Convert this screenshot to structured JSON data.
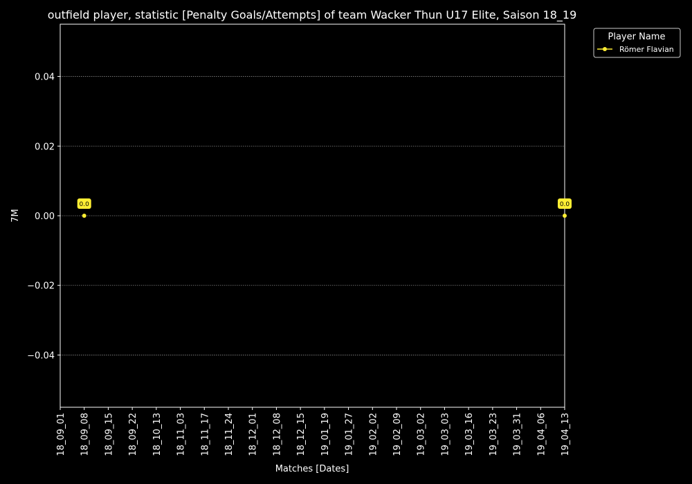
{
  "chart_data": {
    "type": "line",
    "title": "outfield player, statistic [Penalty Goals/Attempts] of team Wacker Thun U17 Elite, Saison 18_19",
    "xlabel": "Matches [Dates]",
    "ylabel": "7M",
    "categories": [
      "18_09_01",
      "18_09_08",
      "18_09_15",
      "18_09_22",
      "18_10_13",
      "18_11_03",
      "18_11_17",
      "18_11_24",
      "18_12_01",
      "18_12_08",
      "18_12_15",
      "19_01_19",
      "19_01_27",
      "19_02_02",
      "19_02_09",
      "19_03_02",
      "19_03_03",
      "19_03_16",
      "19_03_23",
      "19_03_31",
      "19_04_06",
      "19_04_13"
    ],
    "ylim": [
      -0.055,
      0.055
    ],
    "yticks": [
      -0.04,
      -0.02,
      0.0,
      0.02,
      0.04
    ],
    "ytick_labels": [
      "−0.04",
      "−0.02",
      "0.00",
      "0.02",
      "0.04"
    ],
    "grid": "horizontal dotted",
    "legend": {
      "title": "Player Name",
      "placement": "outside-top-right"
    },
    "series": [
      {
        "name": "Römer Flavian",
        "color": "#ffee33",
        "points": [
          {
            "x": "18_09_08",
            "y": 0.0,
            "label": "0.0"
          },
          {
            "x": "19_04_13",
            "y": 0.0,
            "label": "0.0"
          }
        ]
      }
    ]
  },
  "colors": {
    "background": "#000000",
    "foreground": "#ffffff",
    "grid": "#888888",
    "series": "#ffee33"
  }
}
